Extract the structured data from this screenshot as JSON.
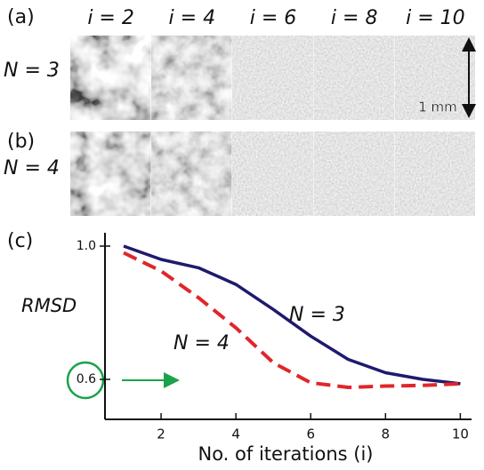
{
  "panels": {
    "labels": [
      "(a)",
      "(b)",
      "(c)"
    ],
    "columns": [
      "i = 2",
      "i = 4",
      "i = 6",
      "i = 8",
      "i = 10"
    ],
    "rows": [
      "N = 3",
      "N = 4"
    ],
    "scale_bar": "1 mm"
  },
  "chart_data": {
    "type": "line",
    "x": [
      1,
      2,
      3,
      4,
      5,
      6,
      7,
      8,
      9,
      10
    ],
    "series": [
      {
        "name": "N = 3",
        "color": "#1f1a6e",
        "dash": false,
        "values": [
          1.0,
          0.96,
          0.935,
          0.885,
          0.81,
          0.73,
          0.66,
          0.62,
          0.6,
          0.587
        ]
      },
      {
        "name": "N = 4",
        "color": "#e0262b",
        "dash": true,
        "values": [
          0.98,
          0.925,
          0.845,
          0.755,
          0.65,
          0.59,
          0.576,
          0.58,
          0.582,
          0.587
        ]
      }
    ],
    "xlim": [
      0.5,
      10.3
    ],
    "ylim": [
      0.48,
      1.04
    ],
    "xticks": [
      2,
      4,
      6,
      8,
      10
    ],
    "yticks": [
      {
        "value": 1.0,
        "label": "1.0"
      },
      {
        "value": 0.6,
        "label": "0.6"
      }
    ],
    "ylabel": "RMSD",
    "xlabel": "No. of iterations (i)"
  }
}
